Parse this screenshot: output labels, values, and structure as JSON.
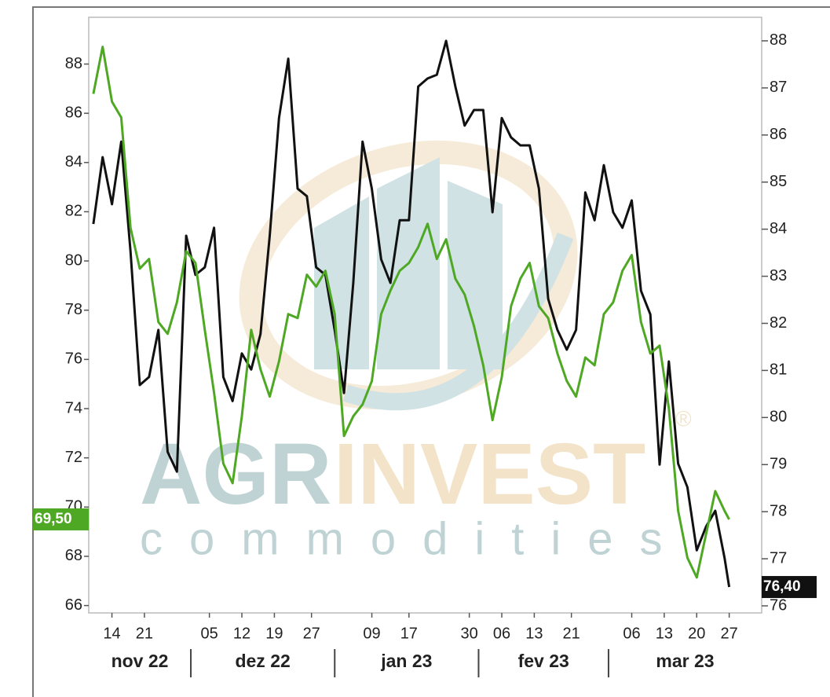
{
  "chart_data": {
    "type": "line",
    "x": [
      "2022-11-10",
      "2022-11-12",
      "2022-11-14",
      "2022-11-16",
      "2022-11-18",
      "2022-11-20",
      "2022-11-22",
      "2022-11-24",
      "2022-11-26",
      "2022-11-28",
      "2022-11-30",
      "2022-12-02",
      "2022-12-04",
      "2022-12-06",
      "2022-12-08",
      "2022-12-10",
      "2022-12-12",
      "2022-12-14",
      "2022-12-16",
      "2022-12-18",
      "2022-12-20",
      "2022-12-22",
      "2022-12-24",
      "2022-12-26",
      "2022-12-28",
      "2022-12-30",
      "2023-01-01",
      "2023-01-03",
      "2023-01-05",
      "2023-01-07",
      "2023-01-09",
      "2023-01-11",
      "2023-01-13",
      "2023-01-15",
      "2023-01-17",
      "2023-01-19",
      "2023-01-21",
      "2023-01-23",
      "2023-01-25",
      "2023-01-27",
      "2023-01-29",
      "2023-01-31",
      "2023-02-02",
      "2023-02-04",
      "2023-02-06",
      "2023-02-08",
      "2023-02-10",
      "2023-02-12",
      "2023-02-14",
      "2023-02-16",
      "2023-02-18",
      "2023-02-20",
      "2023-02-22",
      "2023-02-24",
      "2023-02-26",
      "2023-02-28",
      "2023-03-02",
      "2023-03-04",
      "2023-03-06",
      "2023-03-08",
      "2023-03-10",
      "2023-03-12",
      "2023-03-14",
      "2023-03-16",
      "2023-03-18",
      "2023-03-20",
      "2023-03-22",
      "2023-03-24",
      "2023-03-26",
      "2023-03-27"
    ],
    "series": [
      {
        "color": "#111111",
        "axis": "y2",
        "values": [
          84.11,
          85.53,
          84.53,
          85.86,
          83.53,
          80.69,
          80.86,
          81.86,
          79.27,
          78.85,
          83.86,
          83.03,
          83.19,
          84.03,
          80.86,
          80.35,
          81.36,
          81.02,
          81.77,
          83.86,
          86.36,
          87.62,
          84.86,
          84.7,
          83.19,
          83.03,
          81.86,
          80.52,
          82.86,
          85.86,
          84.86,
          83.36,
          82.86,
          84.19,
          84.19,
          87.03,
          87.2,
          87.28,
          88.0,
          87.03,
          86.2,
          86.53,
          86.53,
          84.36,
          86.36,
          85.95,
          85.78,
          85.78,
          84.86,
          82.52,
          81.86,
          81.44,
          81.86,
          84.78,
          84.19,
          85.36,
          84.36,
          84.03,
          84.61,
          82.69,
          82.19,
          79.0,
          81.19,
          79.02,
          78.52,
          77.18,
          77.68,
          78.02,
          77.02,
          76.4
        ],
        "value_labels": [
          null,
          null,
          null,
          null,
          null,
          null,
          null,
          null,
          null,
          null,
          null,
          null,
          null,
          null,
          null,
          null,
          null,
          null,
          null,
          null,
          null,
          null,
          null,
          null,
          null,
          null,
          null,
          null,
          null,
          null,
          null,
          null,
          null,
          null,
          null,
          null,
          null,
          null,
          null,
          null,
          null,
          null,
          null,
          null,
          null,
          null,
          null,
          null,
          null,
          null,
          null,
          null,
          null,
          null,
          null,
          null,
          null,
          null,
          null,
          null,
          null,
          null,
          null,
          null,
          null,
          null,
          null,
          null,
          null,
          "76,40"
        ]
      },
      {
        "color": "#4ea824",
        "axis": "y",
        "values": [
          86.79,
          88.7,
          86.47,
          85.83,
          81.35,
          79.69,
          80.08,
          77.52,
          77.04,
          78.32,
          80.4,
          79.92,
          77.2,
          74.65,
          71.77,
          70.97,
          73.69,
          77.2,
          75.6,
          74.49,
          75.92,
          77.84,
          77.68,
          79.44,
          78.96,
          79.6,
          77.84,
          72.89,
          73.69,
          74.17,
          75.12,
          77.84,
          78.8,
          79.6,
          79.92,
          80.56,
          81.51,
          80.08,
          80.88,
          79.28,
          78.64,
          77.36,
          75.76,
          73.53,
          75.28,
          78.16,
          79.28,
          79.92,
          78.16,
          77.68,
          76.24,
          75.12,
          74.49,
          76.08,
          75.76,
          77.84,
          78.32,
          79.6,
          80.24,
          77.52,
          76.24,
          76.56,
          74.01,
          69.85,
          67.94,
          67.14,
          68.89,
          70.65,
          69.85,
          69.5
        ],
        "value_labels": [
          null,
          null,
          null,
          null,
          null,
          null,
          null,
          null,
          null,
          null,
          null,
          null,
          null,
          null,
          null,
          null,
          null,
          null,
          null,
          null,
          null,
          null,
          null,
          null,
          null,
          null,
          null,
          null,
          null,
          null,
          null,
          null,
          null,
          null,
          null,
          null,
          null,
          null,
          null,
          null,
          null,
          null,
          null,
          null,
          null,
          null,
          null,
          null,
          null,
          null,
          null,
          null,
          null,
          null,
          null,
          null,
          null,
          null,
          null,
          null,
          null,
          null,
          null,
          null,
          null,
          null,
          null,
          null,
          null,
          "69,50"
        ]
      }
    ],
    "xlim": [
      "2022-11-09",
      "2023-04-03"
    ],
    "xticks": [
      {
        "value": "2022-11-14",
        "label": "14"
      },
      {
        "value": "2022-11-21",
        "label": "21"
      },
      {
        "value": "2022-12-05",
        "label": "05"
      },
      {
        "value": "2022-12-12",
        "label": "12"
      },
      {
        "value": "2022-12-19",
        "label": "19"
      },
      {
        "value": "2022-12-27",
        "label": "27"
      },
      {
        "value": "2023-01-09",
        "label": "09"
      },
      {
        "value": "2023-01-17",
        "label": "17"
      },
      {
        "value": "2023-01-30",
        "label": "30"
      },
      {
        "value": "2023-02-06",
        "label": "06"
      },
      {
        "value": "2023-02-13",
        "label": "13"
      },
      {
        "value": "2023-02-21",
        "label": "21"
      },
      {
        "value": "2023-03-06",
        "label": "06"
      },
      {
        "value": "2023-03-13",
        "label": "13"
      },
      {
        "value": "2023-03-20",
        "label": "20"
      },
      {
        "value": "2023-03-27",
        "label": "27"
      }
    ],
    "x_groups": [
      {
        "label": "nov 22",
        "start": "2022-11-09",
        "end": "2022-12-01"
      },
      {
        "label": "dez 22",
        "start": "2022-12-01",
        "end": "2023-01-01"
      },
      {
        "label": "jan 23",
        "start": "2023-01-01",
        "end": "2023-02-01"
      },
      {
        "label": "fev 23",
        "start": "2023-02-01",
        "end": "2023-03-01"
      },
      {
        "label": "mar 23",
        "start": "2023-03-01",
        "end": "2023-04-03"
      }
    ],
    "ylim": [
      65.7,
      89.9
    ],
    "yticks": [
      66,
      68,
      70,
      72,
      74,
      76,
      78,
      80,
      82,
      84,
      86,
      88
    ],
    "y2lim": [
      75.85,
      88.5
    ],
    "y2ticks": [
      76,
      77,
      78,
      79,
      80,
      81,
      82,
      83,
      84,
      85,
      86,
      87,
      88
    ],
    "watermark": {
      "first": "AGR",
      "second": "INVEST",
      "sub": "commodities",
      "mark": "®"
    }
  }
}
